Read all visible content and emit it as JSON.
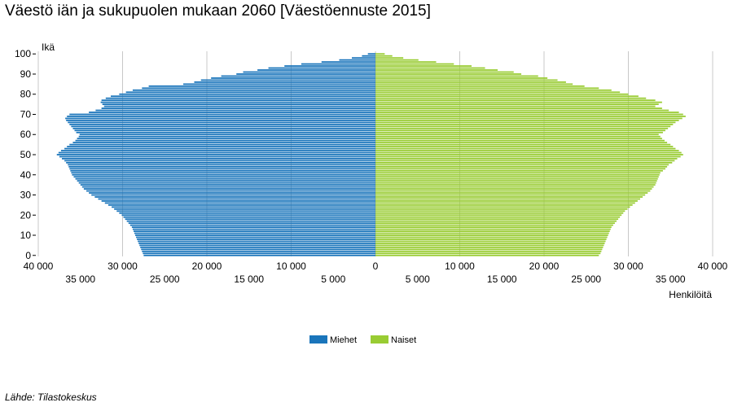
{
  "title": "Väestö iän ja sukupuolen mukaan 2060 [Väestöennuste 2015]",
  "source": "Lähde: Tilastokeskus",
  "colors": {
    "male": "#1a75bb",
    "female": "#99cc33",
    "grid": "#c8c8c8"
  },
  "chart_data": {
    "type": "bar",
    "orientation": "population-pyramid",
    "title": "Väestö iän ja sukupuolen mukaan 2060 [Väestöennuste 2015]",
    "ylabel": "Ikä",
    "xlabel": "Henkilöitä",
    "ylim": [
      0,
      100
    ],
    "xlim": [
      -40000,
      40000
    ],
    "y_ticks": [
      0,
      10,
      20,
      30,
      40,
      50,
      60,
      70,
      80,
      90,
      100
    ],
    "x_ticks_top": [
      "40 000",
      "30 000",
      "20 000",
      "10 000",
      "0",
      "10 000",
      "20 000",
      "30 000",
      "40 000"
    ],
    "x_ticks_bottom": [
      "35 000",
      "25 000",
      "15 000",
      "5 000",
      "5 000",
      "15 000",
      "25 000",
      "35 000"
    ],
    "legend": {
      "position": "bottom-center"
    },
    "series": [
      {
        "name": "Miehet",
        "values": [
          27500,
          27600,
          27700,
          27800,
          27900,
          28000,
          28100,
          28200,
          28300,
          28400,
          28500,
          28600,
          28700,
          28800,
          28900,
          29100,
          29300,
          29500,
          29700,
          29900,
          30100,
          30400,
          30700,
          31000,
          31300,
          31700,
          32100,
          32500,
          32900,
          33300,
          33700,
          34000,
          34300,
          34600,
          34800,
          35000,
          35200,
          35400,
          35600,
          35800,
          36000,
          36100,
          36200,
          36300,
          36400,
          36500,
          36700,
          36900,
          37200,
          37500,
          37800,
          37600,
          37300,
          36900,
          36600,
          36300,
          35900,
          35600,
          35400,
          35200,
          35100,
          35500,
          35700,
          35900,
          36100,
          36300,
          36500,
          36700,
          36800,
          36600,
          36300,
          34000,
          33200,
          32500,
          32200,
          32400,
          32600,
          32500,
          32000,
          31400,
          30400,
          29600,
          28800,
          27700,
          26900,
          22800,
          21500,
          20700,
          19500,
          18300,
          16500,
          15700,
          14000,
          12700,
          10800,
          8800,
          6400,
          4300,
          2800,
          1600,
          900
        ]
      },
      {
        "name": "Naiset",
        "values": [
          26500,
          26700,
          26800,
          26900,
          27000,
          27100,
          27200,
          27300,
          27400,
          27500,
          27600,
          27700,
          27800,
          27900,
          28000,
          28200,
          28400,
          28600,
          28800,
          29000,
          29200,
          29400,
          29600,
          29900,
          30200,
          30500,
          30800,
          31100,
          31400,
          31700,
          32000,
          32300,
          32600,
          32800,
          33000,
          33200,
          33300,
          33400,
          33500,
          33600,
          33700,
          33800,
          34100,
          34400,
          34600,
          34800,
          35200,
          35500,
          35800,
          36200,
          36500,
          36300,
          36000,
          35600,
          35300,
          35000,
          34600,
          34300,
          34000,
          33800,
          33600,
          34100,
          34400,
          34700,
          35000,
          35300,
          35600,
          36000,
          36400,
          36800,
          36500,
          36000,
          34800,
          34000,
          33200,
          33600,
          34000,
          33200,
          32100,
          31200,
          30000,
          29000,
          28000,
          26500,
          24800,
          23400,
          22600,
          21600,
          20400,
          19300,
          17300,
          16400,
          14500,
          13000,
          11400,
          9300,
          7200,
          5100,
          3300,
          2000,
          1100
        ]
      }
    ]
  }
}
